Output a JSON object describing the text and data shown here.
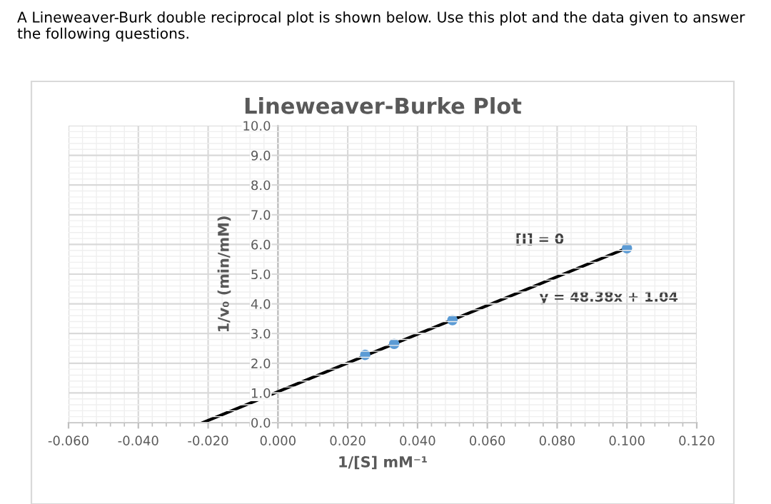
{
  "chart_data": {
    "type": "scatter",
    "title": "Lineweaver-Burke Plot",
    "xlabel": "1/[S] mM⁻¹",
    "ylabel": "1/v₀ (min/mM)",
    "annotations": [
      "A Lineweaver-Burk double reciprocal plot is shown below. Use this plot and the data given to answer the following questions.",
      "[I] = 0",
      "y = 48.38x + 1.04"
    ],
    "series": [
      {
        "color": "#5b9bd5",
        "marker": "circle",
        "x": [
          0.025,
          0.0333,
          0.05,
          0.1
        ],
        "values": [
          2.28,
          2.65,
          3.45,
          5.87
        ]
      },
      {
        "type": "line",
        "color": "#000000",
        "marker": "none",
        "line_style": "solid",
        "x": [
          -0.0215,
          0.1
        ],
        "values": [
          0.0,
          5.88
        ]
      }
    ],
    "xlim": [
      -0.06,
      0.12
    ],
    "xticks": [
      {
        "value": -0.06,
        "label": "-0.060"
      },
      {
        "value": -0.04,
        "label": "-0.040"
      },
      {
        "value": -0.02,
        "label": "-0.020"
      },
      {
        "value": 0,
        "label": "0.000"
      },
      {
        "value": 0.02,
        "label": "0.020"
      },
      {
        "value": 0.04,
        "label": "0.040"
      },
      {
        "value": 0.06,
        "label": "0.060"
      },
      {
        "value": 0.08,
        "label": "0.080"
      },
      {
        "value": 0.1,
        "label": "0.100"
      },
      {
        "value": 0.12,
        "label": "0.120"
      }
    ],
    "ylim": [
      0,
      10
    ],
    "yticks": [
      {
        "value": 0,
        "label": "0.0"
      },
      {
        "value": 1,
        "label": "1.0"
      },
      {
        "value": 2,
        "label": "2.0"
      },
      {
        "value": 3,
        "label": "3.0"
      },
      {
        "value": 4,
        "label": "4.0"
      },
      {
        "value": 5,
        "label": "5.0"
      },
      {
        "value": 6,
        "label": "6.0"
      },
      {
        "value": 7,
        "label": "7.0"
      },
      {
        "value": 8,
        "label": "8.0"
      },
      {
        "value": 9,
        "label": "9.0"
      },
      {
        "value": 10,
        "label": "10.0"
      }
    ],
    "grid": true
  }
}
